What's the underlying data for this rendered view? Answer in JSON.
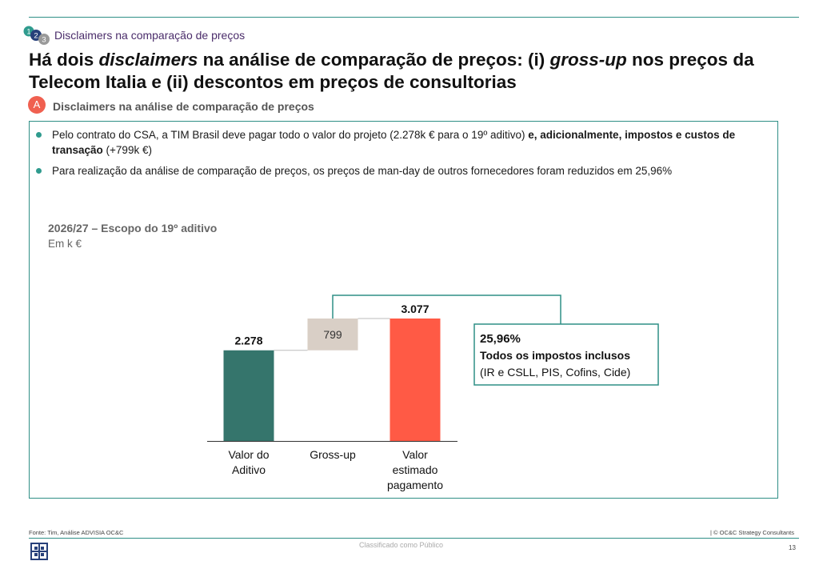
{
  "breadcrumb": {
    "step_numbers": [
      "1",
      "2",
      "3"
    ],
    "label": "Disclaimers na comparação de preços"
  },
  "title": {
    "part1": "Há dois ",
    "italic1": "disclaimers",
    "part2": " na análise de comparação de preços: (i) ",
    "italic2": "gross-up",
    "part3": " nos preços da Telecom Italia e (ii) descontos em preços de consultorias"
  },
  "section": {
    "badge": "A",
    "title": "Disclaimers na análise de comparação de preços"
  },
  "bullets": [
    {
      "text": "Pelo contrato do CSA, a TIM Brasil deve pagar todo o valor do projeto (2.278k € para o 19º aditivo) ",
      "bold": "e, adicionalmente, impostos e custos de transação",
      "text_after": " (+799k €)"
    },
    {
      "text": "Para realização da análise de comparação de preços, os preços de man-day de outros fornecedores foram reduzidos em 25,96%"
    }
  ],
  "chart_header": {
    "title": "2026/27 – Escopo do 19º aditivo",
    "unit": "Em k €"
  },
  "chart_data": {
    "type": "waterfall",
    "title": "2026/27 – Escopo do 19º aditivo",
    "unit": "Em k €",
    "categories": [
      "Valor do Aditivo",
      "Gross-up",
      "Valor estimado pagamento"
    ],
    "category_label_lines": [
      [
        "Valor do",
        "Aditivo"
      ],
      [
        "Gross-up"
      ],
      [
        "Valor",
        "estimado",
        "pagamento"
      ]
    ],
    "values": [
      2278,
      799,
      3077
    ],
    "data_labels": [
      "2.278",
      "799",
      "3.077"
    ],
    "bar_roles": [
      "total",
      "increment",
      "total"
    ],
    "colors": [
      "#35756c",
      "#d9cfc6",
      "#ff5a45"
    ],
    "ylim": [
      0,
      3077
    ]
  },
  "callout": {
    "percent": "25,96%",
    "line1": "Todos os impostos inclusos",
    "line2": "(IR e CSLL, PIS, Cofins, Cide)"
  },
  "footer": {
    "source": "Fonte: Tim, Análise ADVISIA OC&C",
    "copyright": "| © OC&C Strategy Consultants",
    "classification": "Classificado como Público",
    "page": "13"
  }
}
